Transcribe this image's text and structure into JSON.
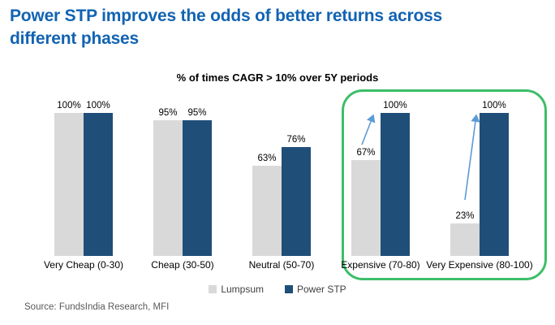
{
  "header": {
    "title": "Power STP improves the odds of better returns across different phases"
  },
  "chart_data": {
    "type": "bar",
    "title": "% of times CAGR > 10% over 5Y periods",
    "categories": [
      "Very Cheap (0-30)",
      "Cheap (30-50)",
      "Neutral (50-70)",
      "Expensive (70-80)",
      "Very Expensive (80-100)"
    ],
    "series": [
      {
        "name": "Lumpsum",
        "color": "#D9D9D9",
        "values": [
          100,
          95,
          63,
          67,
          23
        ],
        "labels": [
          "100%",
          "95%",
          "63%",
          "67%",
          "23%"
        ]
      },
      {
        "name": "Power STP",
        "color": "#1F4E79",
        "values": [
          100,
          95,
          76,
          100,
          100
        ],
        "labels": [
          "100%",
          "95%",
          "76%",
          "100%",
          "100%"
        ]
      }
    ],
    "ylim": [
      0,
      100
    ],
    "grid": false,
    "axis_lines": false,
    "legend_position": "bottom",
    "highlight": {
      "categories": [
        "Expensive (70-80)",
        "Very Expensive (80-100)"
      ],
      "border_color": "#3CBE68"
    },
    "annotations": [
      {
        "type": "arrow",
        "category": "Expensive (70-80)",
        "from_series": "Lumpsum",
        "to_series": "Power STP",
        "color": "#5B9BD5"
      },
      {
        "type": "arrow",
        "category": "Very Expensive (80-100)",
        "from_series": "Lumpsum",
        "to_series": "Power STP",
        "color": "#5B9BD5"
      }
    ]
  },
  "footer": {
    "source": "Source: FundsIndia Research, MFI"
  },
  "colors": {
    "title_text": "#1263B2",
    "lumpsum_bar": "#D9D9D9",
    "power_stp_bar": "#1F4E79",
    "highlight_border": "#3CBE68",
    "arrow": "#5B9BD5",
    "value_label_text": "#000000",
    "source_text": "#595959"
  }
}
